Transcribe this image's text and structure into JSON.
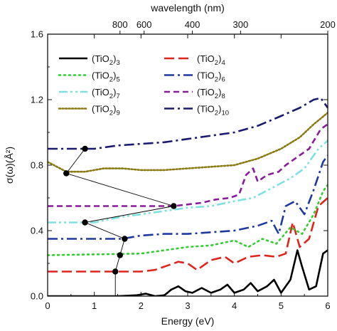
{
  "chart_data": {
    "type": "line",
    "xlabel": "Energy (eV)",
    "ylabel": "σ(ω)(Å²)",
    "top_axis_label": "wavelength (nm)",
    "xlim": [
      0,
      6
    ],
    "ylim": [
      0,
      1.6
    ],
    "x_ticks": [
      0,
      1,
      2,
      3,
      4,
      5,
      6
    ],
    "x_tick_labels": [
      "0",
      "1",
      "2",
      "3",
      "4",
      "5",
      "6"
    ],
    "y_ticks": [
      0.0,
      0.4,
      0.8,
      1.2,
      1.6
    ],
    "y_tick_labels": [
      "0.0",
      "0.4",
      "0.8",
      "1.2",
      "1.6"
    ],
    "top_ticks_nm": [
      800,
      600,
      400,
      300,
      200
    ],
    "top_tick_labels": [
      "800",
      "600",
      "400",
      "300",
      "200"
    ],
    "legend_placement": "top-left, two columns",
    "series": [
      {
        "name": "(TiO2)3",
        "base": "(TiO",
        "sub1": "2",
        "close": ")",
        "sub2": "3",
        "color": "#000000",
        "dash": "solid",
        "points": [
          [
            0,
            0.0
          ],
          [
            1.5,
            0.0
          ],
          [
            1.9,
            0.005
          ],
          [
            2.1,
            0.015
          ],
          [
            2.3,
            0.0
          ],
          [
            2.5,
            0.005
          ],
          [
            2.65,
            0.04
          ],
          [
            2.8,
            0.06
          ],
          [
            2.95,
            0.03
          ],
          [
            3.1,
            0.02
          ],
          [
            3.3,
            0.05
          ],
          [
            3.5,
            0.02
          ],
          [
            3.7,
            0.04
          ],
          [
            3.85,
            0.07
          ],
          [
            4.0,
            0.02
          ],
          [
            4.2,
            0.04
          ],
          [
            4.35,
            0.08
          ],
          [
            4.5,
            0.03
          ],
          [
            4.7,
            0.06
          ],
          [
            4.85,
            0.1
          ],
          [
            5.0,
            0.02
          ],
          [
            5.2,
            0.1
          ],
          [
            5.35,
            0.28
          ],
          [
            5.45,
            0.18
          ],
          [
            5.6,
            0.04
          ],
          [
            5.75,
            0.06
          ],
          [
            5.9,
            0.26
          ],
          [
            6.0,
            0.28
          ]
        ]
      },
      {
        "name": "(TiO2)4",
        "base": "(TiO",
        "sub1": "2",
        "close": ")",
        "sub2": "4",
        "color": "#e0241d",
        "dash": "long-dash",
        "points": [
          [
            0,
            0.15
          ],
          [
            2.0,
            0.15
          ],
          [
            2.3,
            0.16
          ],
          [
            2.6,
            0.19
          ],
          [
            2.8,
            0.21
          ],
          [
            3.0,
            0.2
          ],
          [
            3.2,
            0.16
          ],
          [
            3.5,
            0.22
          ],
          [
            3.8,
            0.24
          ],
          [
            4.0,
            0.2
          ],
          [
            4.3,
            0.24
          ],
          [
            4.6,
            0.25
          ],
          [
            4.9,
            0.24
          ],
          [
            5.1,
            0.26
          ],
          [
            5.25,
            0.45
          ],
          [
            5.4,
            0.3
          ],
          [
            5.6,
            0.35
          ],
          [
            5.8,
            0.55
          ],
          [
            6.0,
            0.6
          ]
        ]
      },
      {
        "name": "(TiO2)5",
        "base": "(TiO",
        "sub1": "2",
        "close": ")",
        "sub2": "5",
        "color": "#33cc33",
        "dash": "dotted",
        "points": [
          [
            0,
            0.25
          ],
          [
            2.0,
            0.26
          ],
          [
            2.5,
            0.28
          ],
          [
            3.0,
            0.3
          ],
          [
            3.5,
            0.31
          ],
          [
            4.0,
            0.34
          ],
          [
            4.3,
            0.3
          ],
          [
            4.6,
            0.35
          ],
          [
            4.9,
            0.32
          ],
          [
            5.2,
            0.42
          ],
          [
            5.45,
            0.38
          ],
          [
            5.7,
            0.5
          ],
          [
            5.9,
            0.64
          ],
          [
            6.0,
            0.68
          ]
        ]
      },
      {
        "name": "(TiO2)6",
        "base": "(TiO",
        "sub1": "2",
        "close": ")",
        "sub2": "6",
        "color": "#1f3a9e",
        "dash": "dash-dot",
        "points": [
          [
            0,
            0.35
          ],
          [
            1.6,
            0.35
          ],
          [
            2.0,
            0.37
          ],
          [
            2.5,
            0.38
          ],
          [
            3.0,
            0.38
          ],
          [
            3.5,
            0.39
          ],
          [
            4.0,
            0.4
          ],
          [
            4.5,
            0.43
          ],
          [
            4.8,
            0.46
          ],
          [
            4.95,
            0.38
          ],
          [
            5.1,
            0.55
          ],
          [
            5.3,
            0.58
          ],
          [
            5.5,
            0.5
          ],
          [
            5.7,
            0.65
          ],
          [
            5.9,
            0.82
          ],
          [
            6.0,
            0.86
          ]
        ]
      },
      {
        "name": "(TiO2)7",
        "base": "(TiO",
        "sub1": "2",
        "close": ")",
        "sub2": "7",
        "color": "#7fe0e0",
        "dash": "dash-dot-dot",
        "points": [
          [
            0,
            0.45
          ],
          [
            1.0,
            0.45
          ],
          [
            1.5,
            0.48
          ],
          [
            2.0,
            0.5
          ],
          [
            2.5,
            0.52
          ],
          [
            3.0,
            0.54
          ],
          [
            3.5,
            0.55
          ],
          [
            4.0,
            0.58
          ],
          [
            4.4,
            0.6
          ],
          [
            4.8,
            0.66
          ],
          [
            5.2,
            0.72
          ],
          [
            5.5,
            0.78
          ],
          [
            5.8,
            0.9
          ],
          [
            6.0,
            0.95
          ]
        ]
      },
      {
        "name": "(TiO2)8",
        "base": "(TiO",
        "sub1": "2",
        "close": ")",
        "sub2": "8",
        "color": "#8a1a9e",
        "dash": "dashed",
        "points": [
          [
            0,
            0.55
          ],
          [
            2.7,
            0.55
          ],
          [
            3.0,
            0.56
          ],
          [
            3.3,
            0.57
          ],
          [
            3.6,
            0.59
          ],
          [
            3.9,
            0.6
          ],
          [
            4.1,
            0.62
          ],
          [
            4.25,
            0.74
          ],
          [
            4.4,
            0.78
          ],
          [
            4.5,
            0.7
          ],
          [
            4.7,
            0.74
          ],
          [
            4.95,
            0.76
          ],
          [
            5.1,
            0.8
          ],
          [
            5.3,
            0.84
          ],
          [
            5.6,
            0.9
          ],
          [
            5.85,
            1.02
          ],
          [
            6.0,
            1.05
          ]
        ]
      },
      {
        "name": "(TiO2)9",
        "base": "(TiO",
        "sub1": "2",
        "close": ")",
        "sub2": "9",
        "color": "#8a7a12",
        "dash": "dense-dotted",
        "points": [
          [
            0,
            0.82
          ],
          [
            0.2,
            0.79
          ],
          [
            0.4,
            0.76
          ],
          [
            0.8,
            0.76
          ],
          [
            1.2,
            0.78
          ],
          [
            1.6,
            0.78
          ],
          [
            2.0,
            0.77
          ],
          [
            2.5,
            0.77
          ],
          [
            3.0,
            0.78
          ],
          [
            3.5,
            0.79
          ],
          [
            4.0,
            0.8
          ],
          [
            4.5,
            0.84
          ],
          [
            5.0,
            0.9
          ],
          [
            5.4,
            0.97
          ],
          [
            5.7,
            1.05
          ],
          [
            6.0,
            1.12
          ]
        ]
      },
      {
        "name": "(TiO2)10",
        "base": "(TiO",
        "sub1": "2",
        "close": ")",
        "sub2": "10",
        "color": "#1a1a6e",
        "dash": "dash-dot",
        "points": [
          [
            0,
            0.9
          ],
          [
            1.0,
            0.9
          ],
          [
            1.5,
            0.92
          ],
          [
            2.0,
            0.93
          ],
          [
            2.5,
            0.94
          ],
          [
            3.0,
            0.96
          ],
          [
            3.5,
            0.98
          ],
          [
            4.0,
            1.0
          ],
          [
            4.5,
            1.04
          ],
          [
            5.0,
            1.1
          ],
          [
            5.4,
            1.15
          ],
          [
            5.7,
            1.2
          ],
          [
            5.85,
            1.21
          ],
          [
            6.0,
            1.15
          ]
        ]
      }
    ],
    "onset_path": [
      [
        0.8,
        0.9
      ],
      [
        0.4,
        0.75
      ],
      [
        2.7,
        0.55
      ],
      [
        0.8,
        0.45
      ],
      [
        1.65,
        0.35
      ],
      [
        1.55,
        0.25
      ],
      [
        1.45,
        0.15
      ],
      [
        1.45,
        0.0
      ]
    ],
    "onset_color": "#000000"
  }
}
